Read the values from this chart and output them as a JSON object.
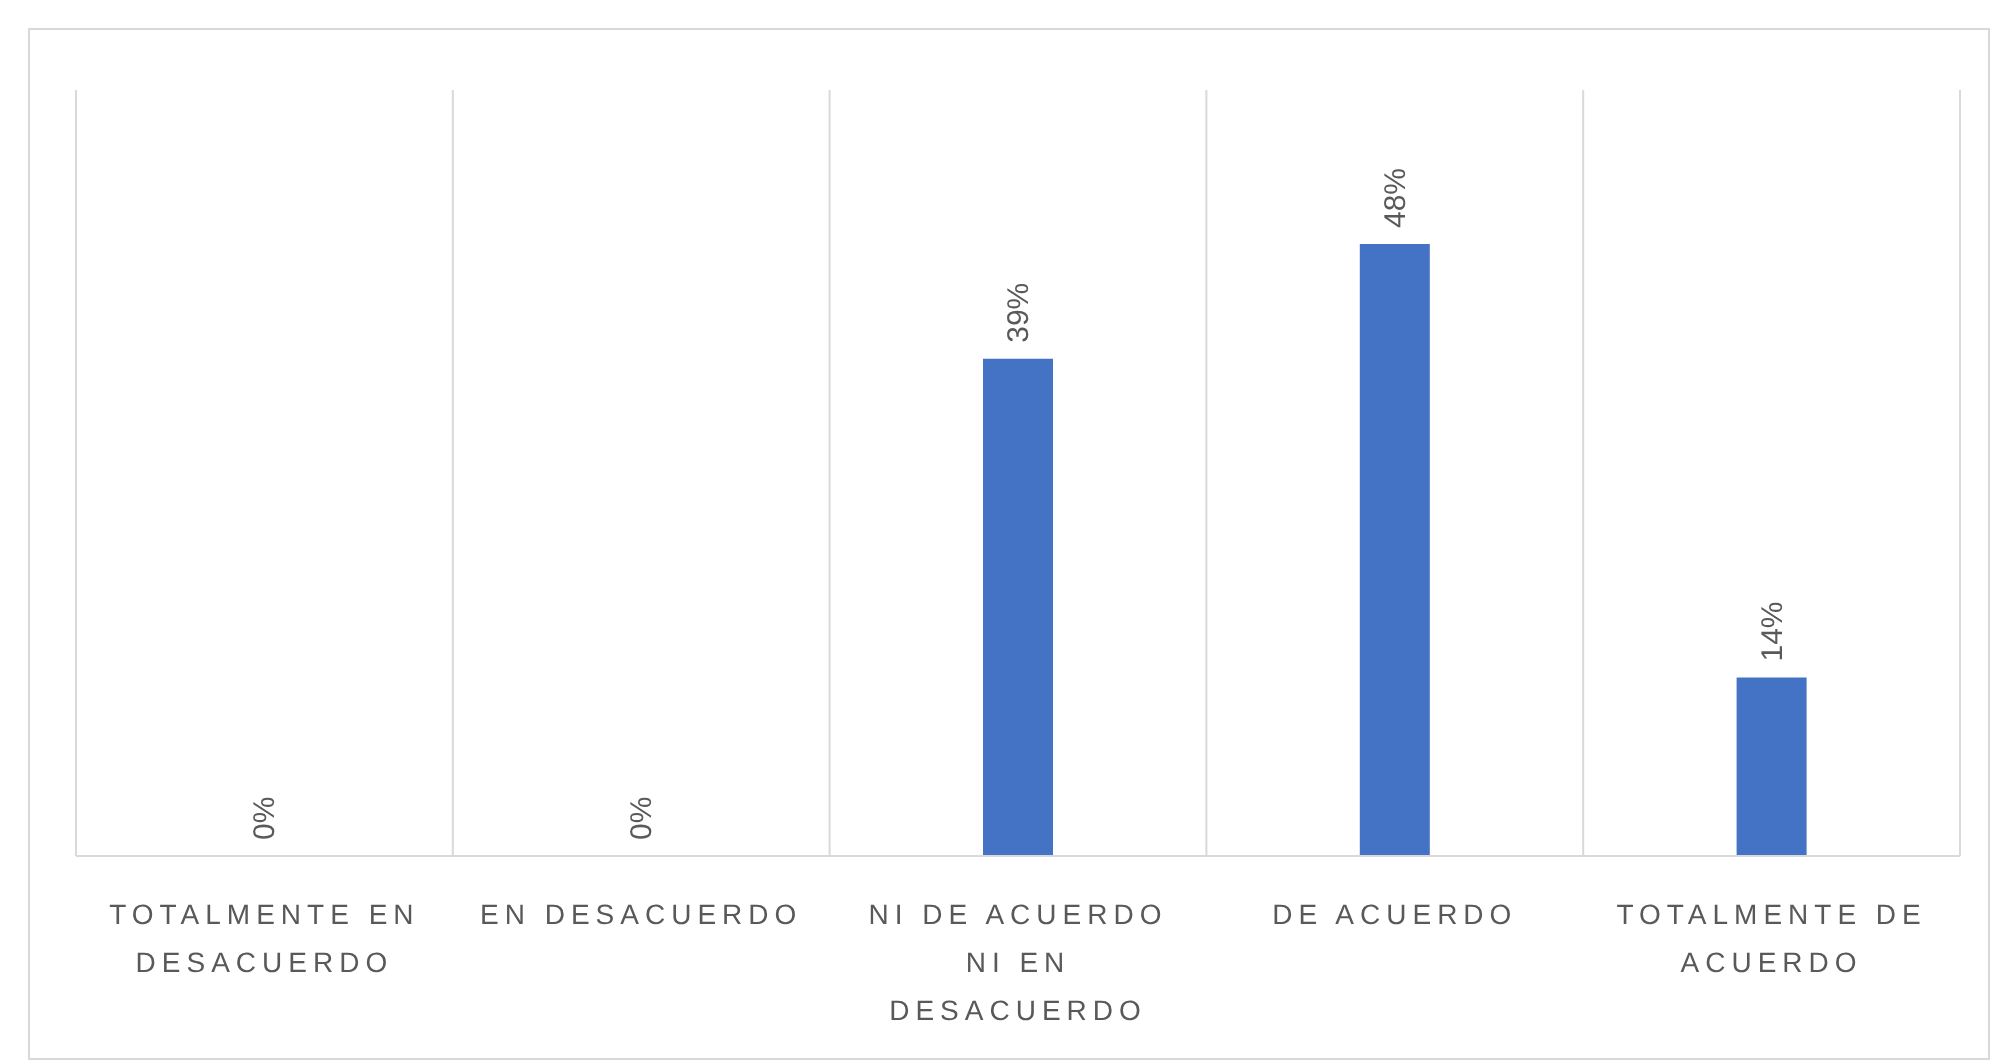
{
  "chart_data": {
    "type": "bar",
    "categories": [
      "TOTALMENTE EN DESACUERDO",
      "EN DESACUERDO",
      "NI DE ACUERDO NI EN DESACUERDO",
      "DE ACUERDO",
      "TOTALMENTE DE ACUERDO"
    ],
    "values": [
      0,
      0,
      39,
      48,
      14
    ],
    "value_labels": [
      "0%",
      "0%",
      "39%",
      "48%",
      "14%"
    ],
    "color": "#4472c4",
    "grid": "x"
  }
}
